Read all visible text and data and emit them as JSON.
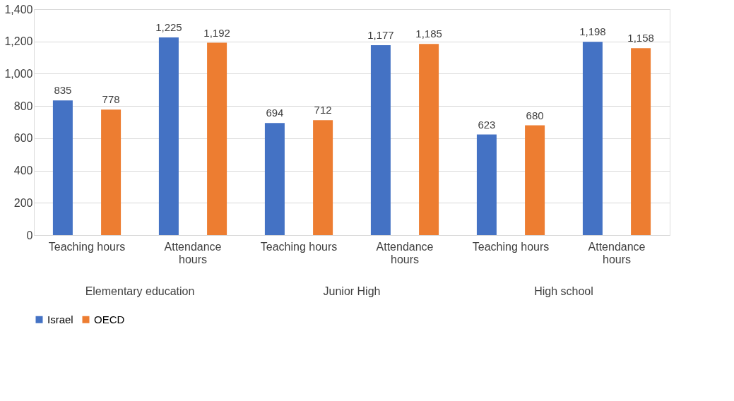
{
  "chart_data": {
    "type": "bar",
    "categories": [
      "Teaching hours",
      "Attendance hours",
      "Teaching hours",
      "Attendance hours",
      "Teaching hours",
      "Attendance hours"
    ],
    "series": [
      {
        "name": "Israel",
        "color": "#4472c4",
        "values": [
          835,
          1225,
          694,
          1177,
          623,
          1198
        ],
        "value_labels": [
          "835",
          "1,225",
          "694",
          "1,177",
          "623",
          "1,198"
        ]
      },
      {
        "name": "OECD",
        "color": "#ed7d31",
        "values": [
          778,
          1192,
          712,
          1185,
          680,
          1158
        ],
        "value_labels": [
          "778",
          "1,192",
          "712",
          "1,185",
          "680",
          "1,158"
        ]
      }
    ],
    "annotations": [
      "Elementary education",
      "Junior High",
      "High school"
    ],
    "ylim": [
      0,
      1400
    ],
    "yticks": [
      0,
      200,
      400,
      600,
      800,
      {
        "value": 1000,
        "label": "1,000"
      },
      {
        "value": 1200,
        "label": "1,200"
      },
      {
        "value": 1400,
        "label": "1,400"
      }
    ],
    "grid": "y",
    "legend": "bottom"
  }
}
